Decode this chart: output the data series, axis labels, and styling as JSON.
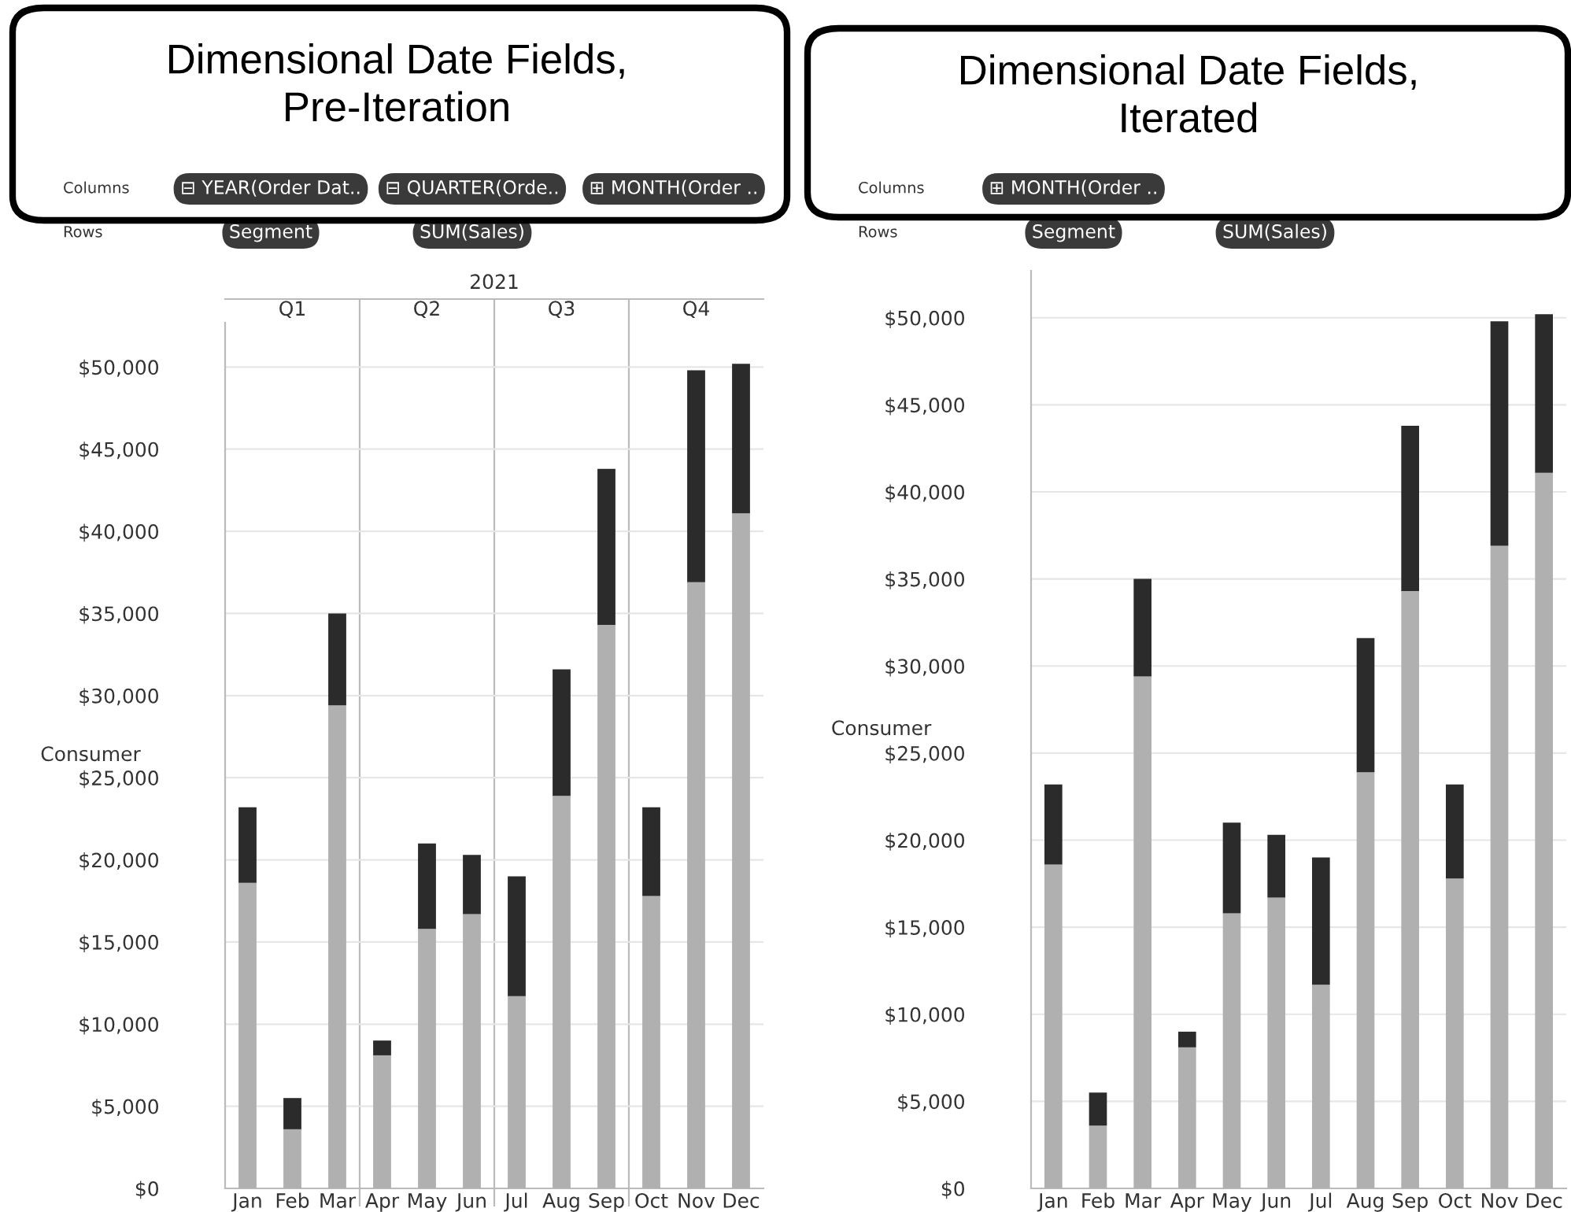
{
  "chart_data": [
    {
      "type": "bar",
      "stacked": true,
      "title": "Dimensional Date Fields,\nPre-Iteration",
      "ylabel": "Consumer",
      "grid": "y",
      "categories": [
        "Jan",
        "Feb",
        "Mar",
        "Apr",
        "May",
        "Jun",
        "Jul",
        "Aug",
        "Sep",
        "Oct",
        "Nov",
        "Dec"
      ],
      "series": [
        {
          "color": "#b0b0b0",
          "values": [
            18600,
            3600,
            29400,
            8100,
            15800,
            16700,
            11700,
            23900,
            34300,
            17800,
            36900,
            41100
          ]
        },
        {
          "color": "#2b2b2b",
          "values": [
            4600,
            1900,
            5600,
            900,
            5200,
            3600,
            7300,
            7700,
            9500,
            5400,
            12900,
            9100
          ]
        }
      ],
      "ylim": [
        0,
        52700
      ],
      "yticks": [
        {
          "value": 0,
          "label": "$0"
        },
        {
          "value": 5000,
          "label": "$5,000"
        },
        {
          "value": 10000,
          "label": "$10,000"
        },
        {
          "value": 15000,
          "label": "$15,000"
        },
        {
          "value": 20000,
          "label": "$20,000"
        },
        {
          "value": 25000,
          "label": "$25,000"
        },
        {
          "value": 30000,
          "label": "$30,000"
        },
        {
          "value": 35000,
          "label": "$35,000"
        },
        {
          "value": 40000,
          "label": "$40,000"
        },
        {
          "value": 45000,
          "label": "$45,000"
        },
        {
          "value": 50000,
          "label": "$50,000"
        }
      ],
      "annotations": [
        "Columns",
        "⊟ YEAR(Order Dat..",
        "⊟ QUARTER(Orde..",
        "⊞ MONTH(Order ..",
        "Rows",
        "Segment",
        "SUM(Sales)",
        "2021",
        "Q1",
        "Q2",
        "Q3",
        "Q4"
      ]
    },
    {
      "type": "bar",
      "stacked": true,
      "title": "Dimensional Date Fields,\nIterated",
      "ylabel": "Consumer",
      "grid": "y",
      "categories": [
        "Jan",
        "Feb",
        "Mar",
        "Apr",
        "May",
        "Jun",
        "Jul",
        "Aug",
        "Sep",
        "Oct",
        "Nov",
        "Dec"
      ],
      "series": [
        {
          "color": "#b0b0b0",
          "values": [
            18600,
            3600,
            29400,
            8100,
            15800,
            16700,
            11700,
            23900,
            34300,
            17800,
            36900,
            41100
          ]
        },
        {
          "color": "#2b2b2b",
          "values": [
            4600,
            1900,
            5600,
            900,
            5200,
            3600,
            7300,
            7700,
            9500,
            5400,
            12900,
            9100
          ]
        }
      ],
      "ylim": [
        0,
        52700
      ],
      "yticks": [
        {
          "value": 0,
          "label": "$0"
        },
        {
          "value": 5000,
          "label": "$5,000"
        },
        {
          "value": 10000,
          "label": "$10,000"
        },
        {
          "value": 15000,
          "label": "$15,000"
        },
        {
          "value": 20000,
          "label": "$20,000"
        },
        {
          "value": 25000,
          "label": "$25,000"
        },
        {
          "value": 30000,
          "label": "$30,000"
        },
        {
          "value": 35000,
          "label": "$35,000"
        },
        {
          "value": 40000,
          "label": "$40,000"
        },
        {
          "value": 45000,
          "label": "$45,000"
        },
        {
          "value": 50000,
          "label": "$50,000"
        }
      ],
      "annotations": [
        "Columns",
        "⊞ MONTH(Order ..",
        "Rows",
        "Segment",
        "SUM(Sales)"
      ]
    }
  ]
}
